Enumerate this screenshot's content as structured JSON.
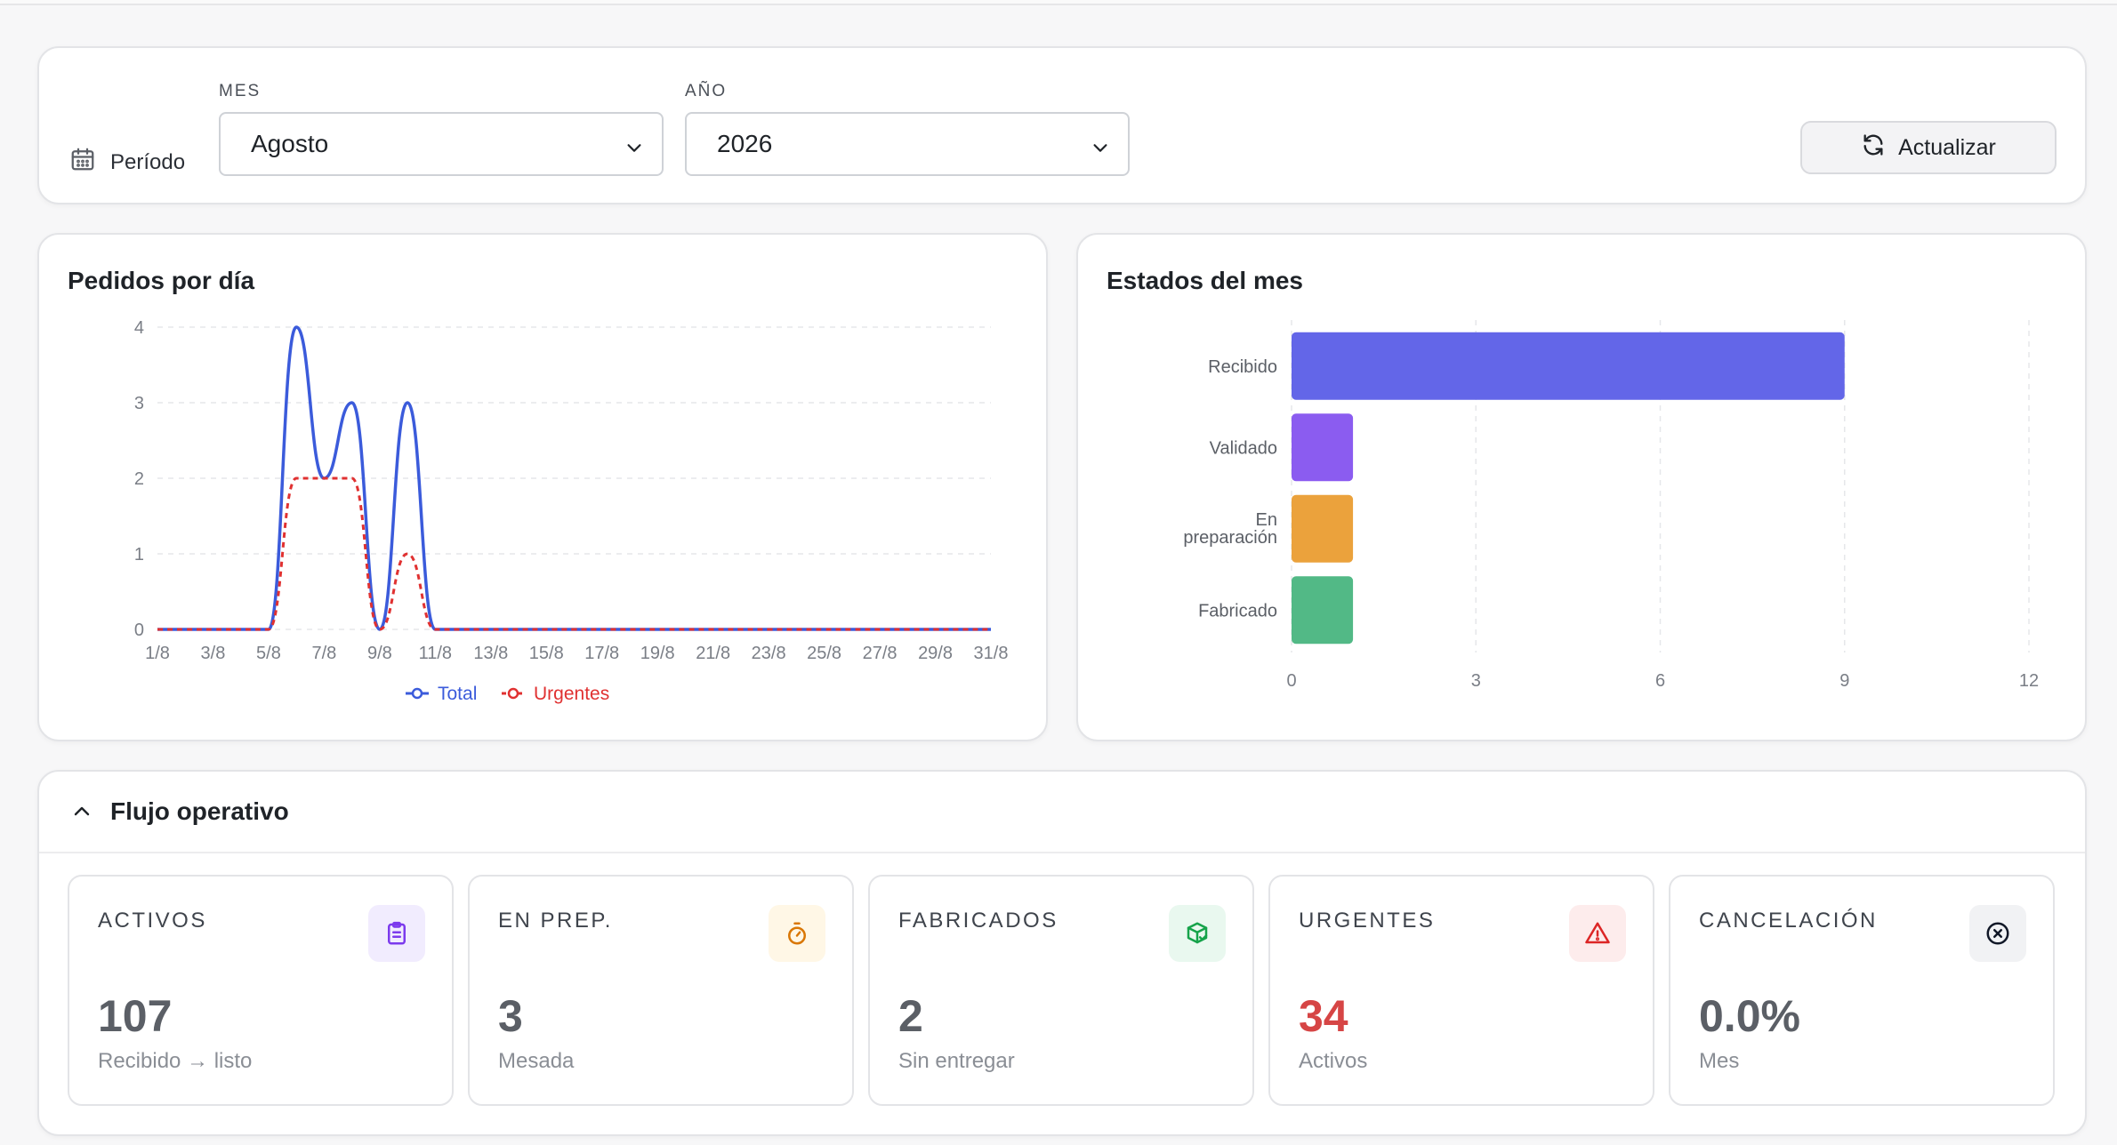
{
  "filters": {
    "period_label": "Período",
    "month_label": "MES",
    "month_value": "Agosto",
    "year_label": "AÑO",
    "year_value": "2026",
    "refresh_label": "Actualizar"
  },
  "line_chart": {
    "title": "Pedidos por día",
    "y_ticks": [
      "0",
      "1",
      "2",
      "3",
      "4"
    ],
    "x_ticks": [
      "1/8",
      "3/8",
      "5/8",
      "7/8",
      "9/8",
      "11/8",
      "13/8",
      "15/8",
      "17/8",
      "19/8",
      "21/8",
      "23/8",
      "25/8",
      "27/8",
      "29/8",
      "31/8"
    ],
    "legend": [
      "Total",
      "Urgentes"
    ]
  },
  "bar_chart": {
    "title": "Estados del mes",
    "x_ticks": [
      "0",
      "3",
      "6",
      "9",
      "12"
    ]
  },
  "chart_data": [
    {
      "type": "line",
      "title": "Pedidos por día",
      "x": [
        "1/8",
        "2/8",
        "3/8",
        "4/8",
        "5/8",
        "6/8",
        "7/8",
        "8/8",
        "9/8",
        "10/8",
        "11/8",
        "12/8",
        "13/8",
        "14/8",
        "15/8",
        "16/8",
        "17/8",
        "18/8",
        "19/8",
        "20/8",
        "21/8",
        "22/8",
        "23/8",
        "24/8",
        "25/8",
        "26/8",
        "27/8",
        "28/8",
        "29/8",
        "30/8",
        "31/8"
      ],
      "ylim": [
        0,
        4
      ],
      "grid": true,
      "legend_placement": "bottom",
      "series": [
        {
          "name": "Total",
          "color": "#3b5bdb",
          "style": "solid",
          "values": [
            0,
            0,
            0,
            0,
            0,
            4,
            2,
            3,
            0,
            3,
            0,
            0,
            0,
            0,
            0,
            0,
            0,
            0,
            0,
            0,
            0,
            0,
            0,
            0,
            0,
            0,
            0,
            0,
            0,
            0,
            0
          ]
        },
        {
          "name": "Urgentes",
          "color": "#e03131",
          "style": "dashed",
          "values": [
            0,
            0,
            0,
            0,
            0,
            2,
            2,
            2,
            0,
            1,
            0,
            0,
            0,
            0,
            0,
            0,
            0,
            0,
            0,
            0,
            0,
            0,
            0,
            0,
            0,
            0,
            0,
            0,
            0,
            0,
            0
          ]
        }
      ]
    },
    {
      "type": "bar",
      "orientation": "horizontal",
      "title": "Estados del mes",
      "categories": [
        "Recibido",
        "Validado",
        "En preparación",
        "Fabricado"
      ],
      "values": [
        9,
        1,
        1,
        1
      ],
      "colors": [
        "#6366e8",
        "#8b5cf0",
        "#eba23c",
        "#52b986"
      ],
      "xlim": [
        0,
        12
      ],
      "grid": true
    }
  ],
  "flow": {
    "title": "Flujo operativo",
    "kpis": [
      {
        "label": "ACTIVOS",
        "value": "107",
        "sub": "Recibido → listo",
        "icon": "clipboard-icon",
        "color": "#7c3aed"
      },
      {
        "label": "EN PREP.",
        "value": "3",
        "sub": "Mesada",
        "icon": "timer-icon",
        "color": "#d97706"
      },
      {
        "label": "FABRICADOS",
        "value": "2",
        "sub": "Sin entregar",
        "icon": "package-check-icon",
        "color": "#16a34a"
      },
      {
        "label": "URGENTES",
        "value": "34",
        "sub": "Activos",
        "icon": "alert-triangle-icon",
        "color": "#dc2626"
      },
      {
        "label": "CANCELACIÓN",
        "value": "0.0%",
        "sub": "Mes",
        "icon": "x-circle-icon",
        "color": "#111827"
      }
    ]
  }
}
